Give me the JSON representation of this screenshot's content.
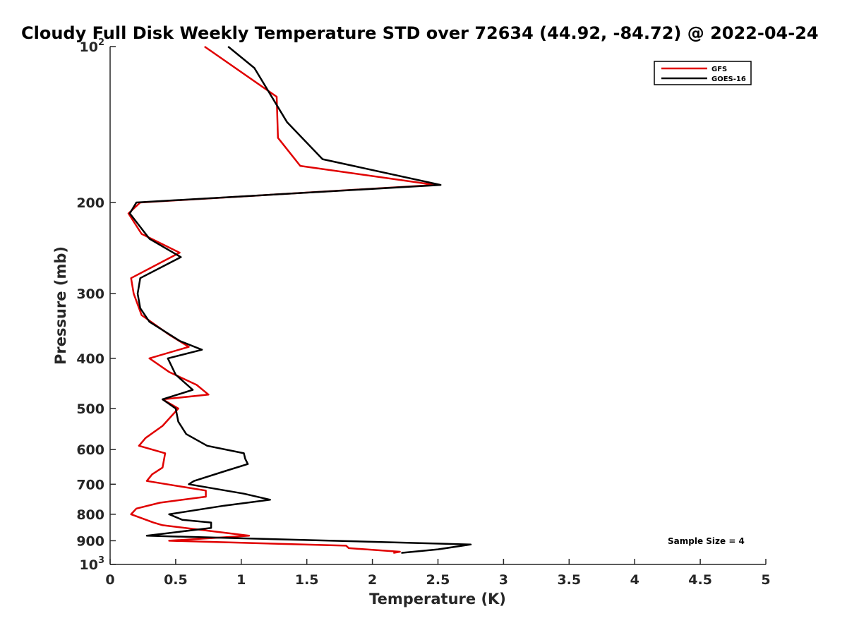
{
  "chart_data": {
    "type": "line",
    "title": "Cloudy Full Disk Weekly Temperature STD over 72634 (44.92, -84.72) @ 2022-04-24",
    "xlabel": "Temperature (K)",
    "ylabel": "Pressure (mb)",
    "xlim": [
      0,
      5
    ],
    "ylim": [
      100,
      1000
    ],
    "y_scale": "log",
    "y_reversed": true,
    "x_ticks": [
      0,
      0.5,
      1,
      1.5,
      2,
      2.5,
      3,
      3.5,
      4,
      4.5,
      5
    ],
    "x_tick_labels": [
      "0",
      "0.5",
      "1",
      "1.5",
      "2",
      "2.5",
      "3",
      "3.5",
      "4",
      "4.5",
      "5"
    ],
    "y_ticks": [
      {
        "value": 100,
        "base": "10",
        "sup": "2"
      },
      {
        "value": 200,
        "label": "200"
      },
      {
        "value": 300,
        "label": "300"
      },
      {
        "value": 400,
        "label": "400"
      },
      {
        "value": 500,
        "label": "500"
      },
      {
        "value": 600,
        "label": "600"
      },
      {
        "value": 700,
        "label": "700"
      },
      {
        "value": 800,
        "label": "800"
      },
      {
        "value": 900,
        "label": "900"
      },
      {
        "value": 1000,
        "base": "10",
        "sup": "3"
      }
    ],
    "grid": false,
    "legend_position": "top-right",
    "annotation": "Sample Size = 4",
    "series": [
      {
        "name": "GFS",
        "color": "#e00000",
        "points": [
          [
            0.72,
            100
          ],
          [
            1.27,
            125
          ],
          [
            1.28,
            150
          ],
          [
            1.45,
            170
          ],
          [
            2.48,
            185
          ],
          [
            0.23,
            200
          ],
          [
            0.14,
            210
          ],
          [
            0.24,
            230
          ],
          [
            0.53,
            250
          ],
          [
            0.16,
            280
          ],
          [
            0.18,
            300
          ],
          [
            0.24,
            330
          ],
          [
            0.45,
            360
          ],
          [
            0.6,
            380
          ],
          [
            0.3,
            400
          ],
          [
            0.45,
            425
          ],
          [
            0.66,
            450
          ],
          [
            0.75,
            470
          ],
          [
            0.4,
            480
          ],
          [
            0.52,
            500
          ],
          [
            0.4,
            540
          ],
          [
            0.27,
            570
          ],
          [
            0.22,
            590
          ],
          [
            0.42,
            610
          ],
          [
            0.4,
            650
          ],
          [
            0.32,
            670
          ],
          [
            0.28,
            690
          ],
          [
            0.73,
            720
          ],
          [
            0.73,
            740
          ],
          [
            0.38,
            760
          ],
          [
            0.2,
            780
          ],
          [
            0.16,
            800
          ],
          [
            0.33,
            830
          ],
          [
            0.4,
            840
          ],
          [
            1.06,
            880
          ],
          [
            0.45,
            900
          ],
          [
            1.8,
            920
          ],
          [
            1.82,
            930
          ],
          [
            2.21,
            945
          ],
          [
            2.16,
            950
          ]
        ]
      },
      {
        "name": "GOES-16",
        "color": "#000000",
        "points": [
          [
            0.9,
            100
          ],
          [
            1.1,
            110
          ],
          [
            1.35,
            140
          ],
          [
            1.62,
            165
          ],
          [
            2.52,
            185
          ],
          [
            0.2,
            200
          ],
          [
            0.15,
            210
          ],
          [
            0.3,
            235
          ],
          [
            0.54,
            255
          ],
          [
            0.23,
            280
          ],
          [
            0.21,
            300
          ],
          [
            0.23,
            320
          ],
          [
            0.3,
            340
          ],
          [
            0.53,
            370
          ],
          [
            0.7,
            385
          ],
          [
            0.44,
            400
          ],
          [
            0.5,
            430
          ],
          [
            0.63,
            460
          ],
          [
            0.4,
            480
          ],
          [
            0.5,
            500
          ],
          [
            0.52,
            530
          ],
          [
            0.58,
            560
          ],
          [
            0.74,
            590
          ],
          [
            1.02,
            610
          ],
          [
            1.03,
            625
          ],
          [
            1.05,
            640
          ],
          [
            0.88,
            660
          ],
          [
            0.64,
            690
          ],
          [
            0.6,
            700
          ],
          [
            1.02,
            730
          ],
          [
            1.22,
            750
          ],
          [
            0.87,
            770
          ],
          [
            0.45,
            800
          ],
          [
            0.55,
            820
          ],
          [
            0.77,
            830
          ],
          [
            0.77,
            850
          ],
          [
            0.28,
            880
          ],
          [
            2.75,
            915
          ],
          [
            2.5,
            935
          ],
          [
            2.22,
            950
          ]
        ]
      }
    ]
  }
}
